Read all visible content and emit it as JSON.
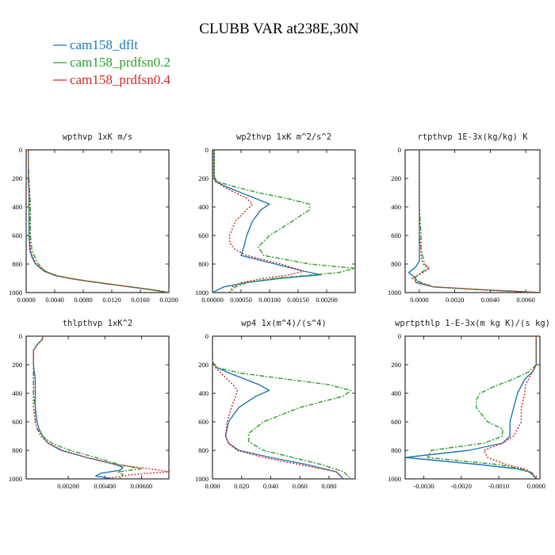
{
  "title": "CLUBB VAR at238E,30N",
  "colors": {
    "cam158_dflt": "#1f77b4",
    "cam158_prdfsn0.2": "#2ca02c",
    "cam158_prdfsn0.4": "#d62728"
  },
  "legend": [
    {
      "name": "cam158_dflt",
      "color": "#1f77b4",
      "dash": ""
    },
    {
      "name": "cam158_prdfsn0.2",
      "color": "#2ca02c",
      "dash": "6,2,2,2"
    },
    {
      "name": "cam158_prdfsn0.4",
      "color": "#d62728",
      "dash": "2,2"
    }
  ],
  "chart_data": [
    {
      "type": "line",
      "title": "wpthvp  1xK m/s",
      "xlim": [
        0,
        0.02
      ],
      "ylim": [
        1000,
        0
      ],
      "xticks": [
        0,
        0.004,
        0.008,
        0.012,
        0.016,
        0.02
      ],
      "xticklabels": [
        "0.0000",
        "0.0040",
        "0.0080",
        "0.0120",
        "0.0160",
        "0.0200"
      ],
      "yticks": [
        0,
        200,
        400,
        600,
        800,
        1000
      ],
      "series": [
        {
          "name": "cam158_dflt",
          "y": [
            0,
            100,
            200,
            300,
            400,
            500,
            600,
            700,
            750,
            800,
            850,
            880,
            900,
            920,
            940,
            960,
            980,
            1000
          ],
          "x": [
            0.0003,
            0.0003,
            0.0003,
            0.0004,
            0.0004,
            0.0004,
            0.0004,
            0.0005,
            0.0008,
            0.0013,
            0.0025,
            0.004,
            0.006,
            0.0085,
            0.0115,
            0.0145,
            0.0175,
            0.02
          ]
        },
        {
          "name": "cam158_prdfsn0.2",
          "y": [
            0,
            100,
            200,
            300,
            400,
            500,
            600,
            700,
            750,
            800,
            850,
            880,
            900,
            920,
            940,
            960,
            980,
            1000
          ],
          "x": [
            0.0003,
            0.0003,
            0.0004,
            0.0005,
            0.0006,
            0.0006,
            0.0006,
            0.0008,
            0.0012,
            0.0017,
            0.0027,
            0.0042,
            0.0062,
            0.0087,
            0.0117,
            0.0147,
            0.0177,
            0.02
          ]
        },
        {
          "name": "cam158_prdfsn0.4",
          "y": [
            0,
            100,
            200,
            300,
            400,
            500,
            600,
            700,
            750,
            800,
            850,
            880,
            900,
            920,
            940,
            960,
            980,
            1000
          ],
          "x": [
            0.0003,
            0.0003,
            0.0003,
            0.0004,
            0.0004,
            0.0005,
            0.0005,
            0.0006,
            0.0009,
            0.0014,
            0.0026,
            0.0041,
            0.0061,
            0.0086,
            0.0116,
            0.0146,
            0.0176,
            0.02
          ]
        }
      ]
    },
    {
      "type": "line",
      "title": "wp2thvp  1xK m^2/s^2",
      "xlim": [
        0,
        0.0025
      ],
      "ylim": [
        1000,
        0
      ],
      "xticks": [
        0,
        0.0005,
        0.001,
        0.0015,
        0.002
      ],
      "xticklabels": [
        "0.00000",
        "0.00050",
        "0.00100",
        "0.00150",
        "0.00200"
      ],
      "yticks": [
        0,
        200,
        400,
        600,
        800,
        1000
      ],
      "series": [
        {
          "name": "cam158_dflt",
          "y": [
            0,
            180,
            220,
            260,
            300,
            340,
            380,
            420,
            500,
            600,
            680,
            740,
            800,
            850,
            875,
            900,
            930,
            960,
            1000
          ],
          "x": [
            3e-05,
            3e-05,
            5e-05,
            0.00025,
            0.0005,
            0.00075,
            0.001,
            0.00085,
            0.0007,
            0.0006,
            0.00055,
            0.0005,
            0.0011,
            0.0016,
            0.0019,
            0.0012,
            0.0006,
            0.0002,
            0
          ]
        },
        {
          "name": "cam158_prdfsn0.2",
          "y": [
            0,
            180,
            220,
            260,
            300,
            340,
            380,
            420,
            500,
            600,
            680,
            740,
            800,
            830,
            860,
            900,
            930,
            960,
            1000
          ],
          "x": [
            3e-05,
            3e-05,
            7e-05,
            0.0004,
            0.0008,
            0.0013,
            0.0017,
            0.0017,
            0.0014,
            0.001,
            0.0008,
            0.0009,
            0.0017,
            0.0025,
            0.0022,
            0.0011,
            0.0006,
            0.0004,
            0.0003
          ]
        },
        {
          "name": "cam158_prdfsn0.4",
          "y": [
            0,
            180,
            220,
            260,
            300,
            340,
            380,
            420,
            500,
            600,
            650,
            700,
            740,
            800,
            850,
            880,
            900,
            930,
            960,
            1000
          ],
          "x": [
            2e-05,
            2e-05,
            4e-05,
            0.0002,
            0.0004,
            0.0006,
            0.0007,
            0.0006,
            0.0004,
            0.0003,
            0.0003,
            0.0004,
            0.0006,
            0.0012,
            0.0016,
            0.0013,
            0.0009,
            0.0005,
            0.00035,
            0.0003
          ]
        }
      ]
    },
    {
      "type": "line",
      "title": "rtpthvp  1E-3x(kg/kg) K",
      "xlim": [
        -0.0008,
        0.0068
      ],
      "ylim": [
        1000,
        0
      ],
      "xticks": [
        0,
        0.002,
        0.004,
        0.006
      ],
      "xticklabels": [
        "0.0000",
        "0.0020",
        "0.0040",
        "0.0060"
      ],
      "yticks": [
        0,
        200,
        400,
        600,
        800,
        1000
      ],
      "series": [
        {
          "name": "cam158_dflt",
          "y": [
            0,
            200,
            400,
            600,
            700,
            750,
            780,
            820,
            860,
            900,
            930,
            960,
            980,
            1000
          ],
          "x": [
            0,
            0,
            0,
            0,
            0,
            0,
            0,
            -0.0002,
            -0.0006,
            -0.0002,
            -0.0002,
            0.0008,
            0.0035,
            0.0068
          ]
        },
        {
          "name": "cam158_prdfsn0.2",
          "y": [
            0,
            200,
            400,
            600,
            700,
            750,
            800,
            830,
            860,
            900,
            930,
            960,
            980,
            1000
          ],
          "x": [
            0,
            0,
            0,
            0.0001,
            0.0001,
            0.0002,
            0.0003,
            0.0005,
            0.0001,
            -0.0003,
            0.0001,
            0.0008,
            0.0035,
            0.0068
          ]
        },
        {
          "name": "cam158_prdfsn0.4",
          "y": [
            0,
            200,
            400,
            600,
            700,
            750,
            800,
            830,
            860,
            900,
            930,
            960,
            980,
            1000
          ],
          "x": [
            0,
            0,
            0,
            0,
            0.0001,
            0.0001,
            0.0002,
            0.0006,
            0.0002,
            -0.0004,
            0,
            0.0008,
            0.0035,
            0.0068
          ]
        }
      ]
    },
    {
      "type": "line",
      "title": "thlpthvp  1xK^2",
      "xlim": [
        -0.0003,
        0.0075
      ],
      "ylim": [
        1000,
        0
      ],
      "xticks": [
        0.002,
        0.004,
        0.006
      ],
      "xticklabels": [
        "0.00200",
        "0.00400",
        "0.00600"
      ],
      "yticks": [
        0,
        200,
        400,
        600,
        800,
        1000
      ],
      "series": [
        {
          "name": "cam158_dflt",
          "y": [
            0,
            20,
            60,
            100,
            200,
            300,
            400,
            500,
            600,
            650,
            700,
            750,
            800,
            850,
            900,
            920,
            940,
            960,
            980,
            1000
          ],
          "x": [
            0.0006,
            0.0006,
            0.0003,
            0.0001,
            0.0001,
            0.0002,
            0.0002,
            0.0002,
            0.0003,
            0.0004,
            0.0006,
            0.0009,
            0.0016,
            0.003,
            0.0046,
            0.005,
            0.0048,
            0.0038,
            0.0035,
            0.0045
          ]
        },
        {
          "name": "cam158_prdfsn0.2",
          "y": [
            0,
            20,
            60,
            100,
            200,
            300,
            400,
            500,
            600,
            650,
            700,
            750,
            800,
            850,
            900,
            930,
            950,
            970,
            1000
          ],
          "x": [
            0.0006,
            0.0006,
            0.0003,
            0.0001,
            0.0001,
            0.0001,
            0.0001,
            0.0002,
            0.0002,
            0.0003,
            0.0006,
            0.0011,
            0.0021,
            0.0035,
            0.0048,
            0.006,
            0.0047,
            0.005,
            0.0048
          ]
        },
        {
          "name": "cam158_prdfsn0.4",
          "y": [
            0,
            20,
            60,
            100,
            200,
            300,
            400,
            500,
            600,
            650,
            700,
            750,
            800,
            850,
            900,
            930,
            950,
            970,
            1000
          ],
          "x": [
            0.0006,
            0.0006,
            0.0003,
            0.0001,
            0.0001,
            0.0001,
            0.0001,
            0.0001,
            0.0002,
            0.0003,
            0.0005,
            0.0009,
            0.0017,
            0.003,
            0.0046,
            0.0065,
            0.0075,
            0.0055,
            0.004
          ]
        }
      ]
    },
    {
      "type": "line",
      "title": "wp4  1x(m^4)/(s^4)",
      "xlim": [
        0,
        0.098
      ],
      "ylim": [
        1000,
        0
      ],
      "xticks": [
        0,
        0.02,
        0.04,
        0.06,
        0.08
      ],
      "xticklabels": [
        "0.000",
        "0.020",
        "0.040",
        "0.060",
        "0.080"
      ],
      "yticks": [
        0,
        200,
        400,
        600,
        800,
        1000
      ],
      "series": [
        {
          "name": "cam158_dflt",
          "y": [
            0,
            180,
            220,
            260,
            300,
            340,
            380,
            420,
            500,
            600,
            700,
            750,
            800,
            850,
            900,
            950,
            1000
          ],
          "x": [
            0,
            0,
            0.003,
            0.012,
            0.022,
            0.032,
            0.039,
            0.03,
            0.018,
            0.011,
            0.009,
            0.011,
            0.018,
            0.04,
            0.065,
            0.085,
            0.09
          ]
        },
        {
          "name": "cam158_prdfsn0.2",
          "y": [
            0,
            180,
            220,
            260,
            300,
            340,
            380,
            420,
            500,
            600,
            680,
            740,
            800,
            850,
            900,
            950,
            1000
          ],
          "x": [
            0,
            0,
            0.003,
            0.02,
            0.05,
            0.08,
            0.095,
            0.09,
            0.06,
            0.035,
            0.025,
            0.025,
            0.035,
            0.055,
            0.075,
            0.09,
            0.095
          ]
        },
        {
          "name": "cam158_prdfsn0.4",
          "y": [
            0,
            180,
            220,
            260,
            300,
            340,
            380,
            420,
            500,
            600,
            700,
            750,
            800,
            850,
            900,
            950,
            1000
          ],
          "x": [
            0,
            0,
            0.002,
            0.006,
            0.01,
            0.014,
            0.017,
            0.016,
            0.013,
            0.01,
            0.009,
            0.011,
            0.017,
            0.035,
            0.06,
            0.085,
            0.09
          ]
        }
      ]
    },
    {
      "type": "line",
      "title": "wprtpthlp  1-E-3x(m kg K)/(s kg)",
      "xlim": [
        -0.0035,
        0.0001
      ],
      "ylim": [
        1000,
        0
      ],
      "xticks": [
        -0.003,
        -0.002,
        -0.001,
        0
      ],
      "xticklabels": [
        "-0.0030",
        "-0.0020",
        "-0.0010",
        "0.0000"
      ],
      "yticks": [
        0,
        200,
        400,
        600,
        800,
        1000
      ],
      "series": [
        {
          "name": "cam158_dflt",
          "y": [
            0,
            200,
            250,
            300,
            400,
            500,
            600,
            700,
            750,
            800,
            850,
            900,
            930,
            950,
            970,
            1000
          ],
          "x": [
            0,
            0,
            -0.0001,
            -0.0003,
            -0.0005,
            -0.0006,
            -0.0007,
            -0.0007,
            -0.0009,
            -0.0018,
            -0.0035,
            -0.0015,
            -0.0005,
            -0.0002,
            -0.0001,
            0
          ]
        },
        {
          "name": "cam158_prdfsn0.2",
          "y": [
            0,
            200,
            250,
            300,
            350,
            400,
            450,
            500,
            600,
            650,
            700,
            750,
            800,
            850,
            900,
            930,
            960,
            1000
          ],
          "x": [
            0,
            0,
            -0.0002,
            -0.0006,
            -0.0011,
            -0.0015,
            -0.0016,
            -0.0016,
            -0.0013,
            -0.0009,
            -0.0009,
            -0.0014,
            -0.0028,
            -0.0029,
            -0.001,
            -0.0004,
            -0.0001,
            0
          ]
        },
        {
          "name": "cam158_prdfsn0.4",
          "y": [
            0,
            200,
            250,
            300,
            350,
            400,
            500,
            550,
            600,
            700,
            750,
            800,
            850,
            900,
            930,
            960,
            1000
          ],
          "x": [
            0,
            0,
            -0.0001,
            -0.0002,
            -0.0003,
            -0.0003,
            -0.0004,
            -0.0004,
            -0.0004,
            -0.0006,
            -0.0009,
            -0.0014,
            -0.0013,
            -0.0008,
            -0.0003,
            -0.0001,
            0
          ]
        }
      ]
    }
  ]
}
